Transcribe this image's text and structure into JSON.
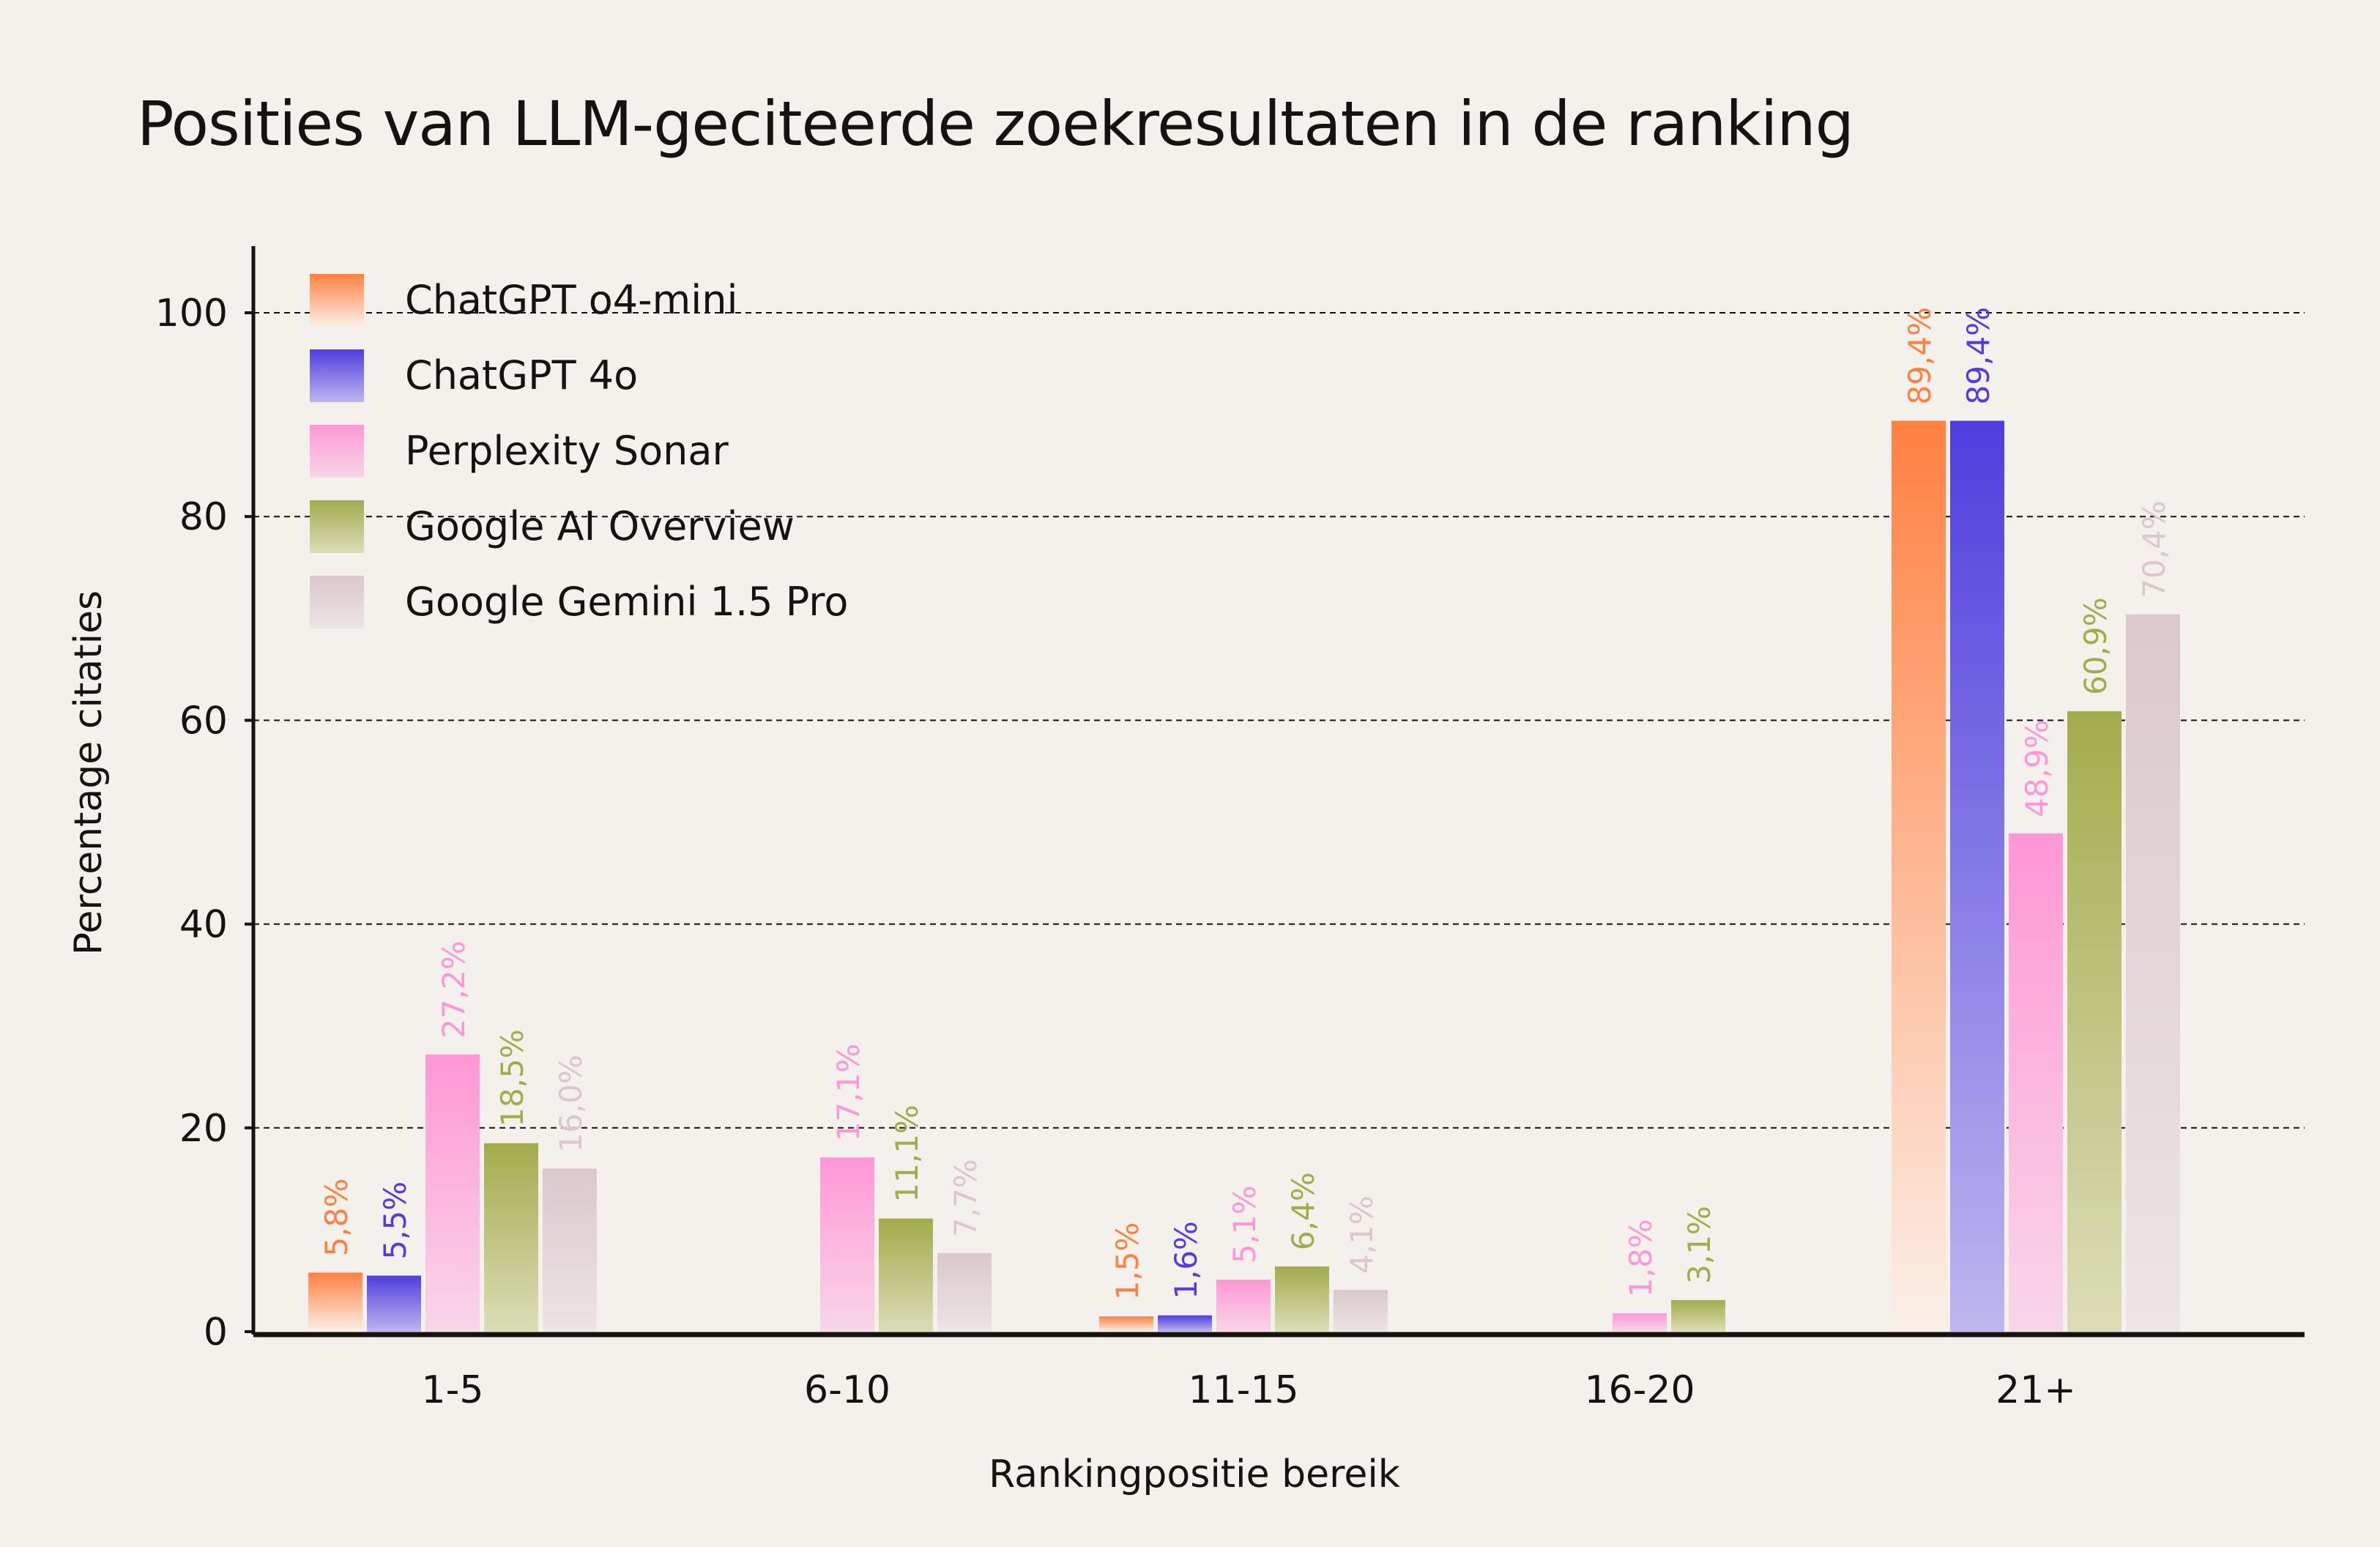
{
  "chart_data": {
    "type": "bar",
    "title": "Posities van LLM-geciteerde zoekresultaten in de ranking",
    "xlabel": "Rankingpositie bereik",
    "ylabel": "Percentage citaties",
    "ylim": [
      0,
      105
    ],
    "yticks": [
      0,
      20,
      40,
      60,
      80,
      100
    ],
    "grid": true,
    "legend_placement": "top-left",
    "categories": [
      "1-5",
      "6-10",
      "11-15",
      "16-20",
      "21+"
    ],
    "series": [
      {
        "name": "ChatGPT o4-mini",
        "color": "#FF8142",
        "values": [
          5.8,
          null,
          1.5,
          null,
          89.4
        ],
        "labels": [
          "5,8%",
          null,
          "1,5%",
          null,
          "89,4%"
        ]
      },
      {
        "name": "ChatGPT 4o",
        "color": "#4F3EDD",
        "values": [
          5.5,
          null,
          1.6,
          null,
          89.4
        ],
        "labels": [
          "5,5%",
          null,
          "1,6%",
          null,
          "89,4%"
        ]
      },
      {
        "name": "Perplexity Sonar",
        "color": "#FF97D6",
        "values": [
          27.2,
          17.1,
          5.1,
          1.8,
          48.9
        ],
        "labels": [
          "27,2%",
          "17,1%",
          "5,1%",
          "1,8%",
          "48,9%"
        ]
      },
      {
        "name": "Google AI Overview",
        "color": "#A3AC4C",
        "values": [
          18.5,
          11.1,
          6.4,
          3.1,
          60.9
        ],
        "labels": [
          "18,5%",
          "11,1%",
          "6,4%",
          "3,1%",
          "60,9%"
        ]
      },
      {
        "name": "Google Gemini 1.5 Pro",
        "color": "#DBC8CC",
        "values": [
          16.0,
          7.7,
          4.1,
          null,
          70.4
        ],
        "labels": [
          "16,0%",
          "7,7%",
          "4,1%",
          null,
          "70,4%"
        ]
      }
    ]
  }
}
